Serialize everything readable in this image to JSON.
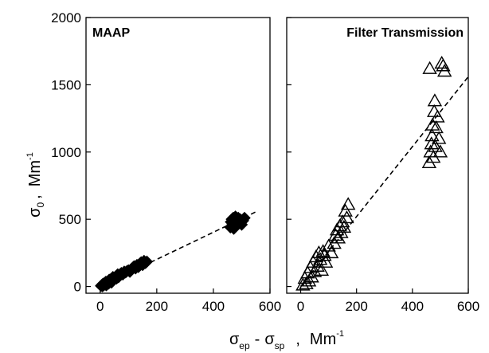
{
  "chart_data": [
    {
      "type": "scatter",
      "title": "MAAP",
      "marker": "filled-diamond",
      "xlim": [
        -50,
        600
      ],
      "ylim": [
        -50,
        2000
      ],
      "x_ticks": [
        0,
        200,
        400,
        600
      ],
      "y_ticks": [
        0,
        500,
        1000,
        1500,
        2000
      ],
      "grid": false,
      "points": [
        [
          3,
          5
        ],
        [
          6,
          12
        ],
        [
          8,
          2
        ],
        [
          10,
          20
        ],
        [
          12,
          8
        ],
        [
          15,
          25
        ],
        [
          18,
          15
        ],
        [
          20,
          35
        ],
        [
          22,
          10
        ],
        [
          25,
          30
        ],
        [
          28,
          40
        ],
        [
          30,
          22
        ],
        [
          32,
          50
        ],
        [
          35,
          45
        ],
        [
          38,
          55
        ],
        [
          40,
          30
        ],
        [
          42,
          60
        ],
        [
          45,
          70
        ],
        [
          48,
          50
        ],
        [
          50,
          65
        ],
        [
          55,
          75
        ],
        [
          58,
          60
        ],
        [
          60,
          80
        ],
        [
          62,
          90
        ],
        [
          65,
          70
        ],
        [
          70,
          85
        ],
        [
          72,
          95
        ],
        [
          75,
          100
        ],
        [
          80,
          90
        ],
        [
          85,
          110
        ],
        [
          90,
          105
        ],
        [
          95,
          115
        ],
        [
          100,
          120
        ],
        [
          105,
          110
        ],
        [
          110,
          130
        ],
        [
          115,
          140
        ],
        [
          120,
          150
        ],
        [
          125,
          135
        ],
        [
          130,
          160
        ],
        [
          135,
          145
        ],
        [
          140,
          170
        ],
        [
          145,
          180
        ],
        [
          150,
          160
        ],
        [
          155,
          190
        ],
        [
          160,
          175
        ],
        [
          165,
          185
        ],
        [
          460,
          440
        ],
        [
          462,
          480
        ],
        [
          465,
          500
        ],
        [
          468,
          460
        ],
        [
          470,
          510
        ],
        [
          472,
          430
        ],
        [
          475,
          490
        ],
        [
          478,
          520
        ],
        [
          480,
          450
        ],
        [
          482,
          500
        ],
        [
          485,
          470
        ],
        [
          488,
          510
        ],
        [
          490,
          480
        ],
        [
          495,
          500
        ],
        [
          500,
          460
        ],
        [
          505,
          490
        ],
        [
          510,
          510
        ]
      ],
      "fit_line": {
        "x": [
          0,
          550
        ],
        "y": [
          0,
          555
        ]
      }
    },
    {
      "type": "scatter",
      "title": "Filter Transmission",
      "marker": "open-triangle",
      "xlim": [
        -50,
        600
      ],
      "ylim": [
        -50,
        2000
      ],
      "x_ticks": [
        0,
        200,
        400,
        600
      ],
      "y_ticks": [
        0,
        500,
        1000,
        1500,
        2000
      ],
      "grid": false,
      "points": [
        [
          8,
          10
        ],
        [
          15,
          60
        ],
        [
          20,
          20
        ],
        [
          25,
          100
        ],
        [
          30,
          40
        ],
        [
          35,
          140
        ],
        [
          40,
          70
        ],
        [
          45,
          180
        ],
        [
          50,
          110
        ],
        [
          55,
          220
        ],
        [
          60,
          150
        ],
        [
          65,
          250
        ],
        [
          70,
          200
        ],
        [
          75,
          120
        ],
        [
          80,
          260
        ],
        [
          85,
          230
        ],
        [
          90,
          180
        ],
        [
          100,
          300
        ],
        [
          110,
          250
        ],
        [
          120,
          320
        ],
        [
          125,
          380
        ],
        [
          130,
          420
        ],
        [
          135,
          360
        ],
        [
          140,
          450
        ],
        [
          145,
          400
        ],
        [
          150,
          480
        ],
        [
          155,
          440
        ],
        [
          160,
          560
        ],
        [
          165,
          510
        ],
        [
          170,
          610
        ],
        [
          460,
          920
        ],
        [
          462,
          1620
        ],
        [
          465,
          1000
        ],
        [
          468,
          1060
        ],
        [
          470,
          1120
        ],
        [
          472,
          1200
        ],
        [
          475,
          960
        ],
        [
          478,
          1300
        ],
        [
          480,
          1380
        ],
        [
          482,
          1040
        ],
        [
          485,
          1180
        ],
        [
          490,
          1260
        ],
        [
          495,
          1100
        ],
        [
          500,
          1000
        ],
        [
          505,
          1660
        ],
        [
          510,
          1640
        ],
        [
          515,
          1600
        ]
      ],
      "fit_line": {
        "x": [
          0,
          600
        ],
        "y": [
          0,
          1560
        ]
      }
    }
  ],
  "axes": {
    "ylabel": {
      "symbol": "σ",
      "sub": "0",
      "unit": "Mm",
      "sup": "-1",
      "sep": ","
    },
    "xlabel": {
      "sym1": "σ",
      "sub1": "ep",
      "minus": "-",
      "sym2": "σ",
      "sub2": "sp",
      "sep": ",",
      "unit": "Mm",
      "sup": "-1"
    }
  }
}
